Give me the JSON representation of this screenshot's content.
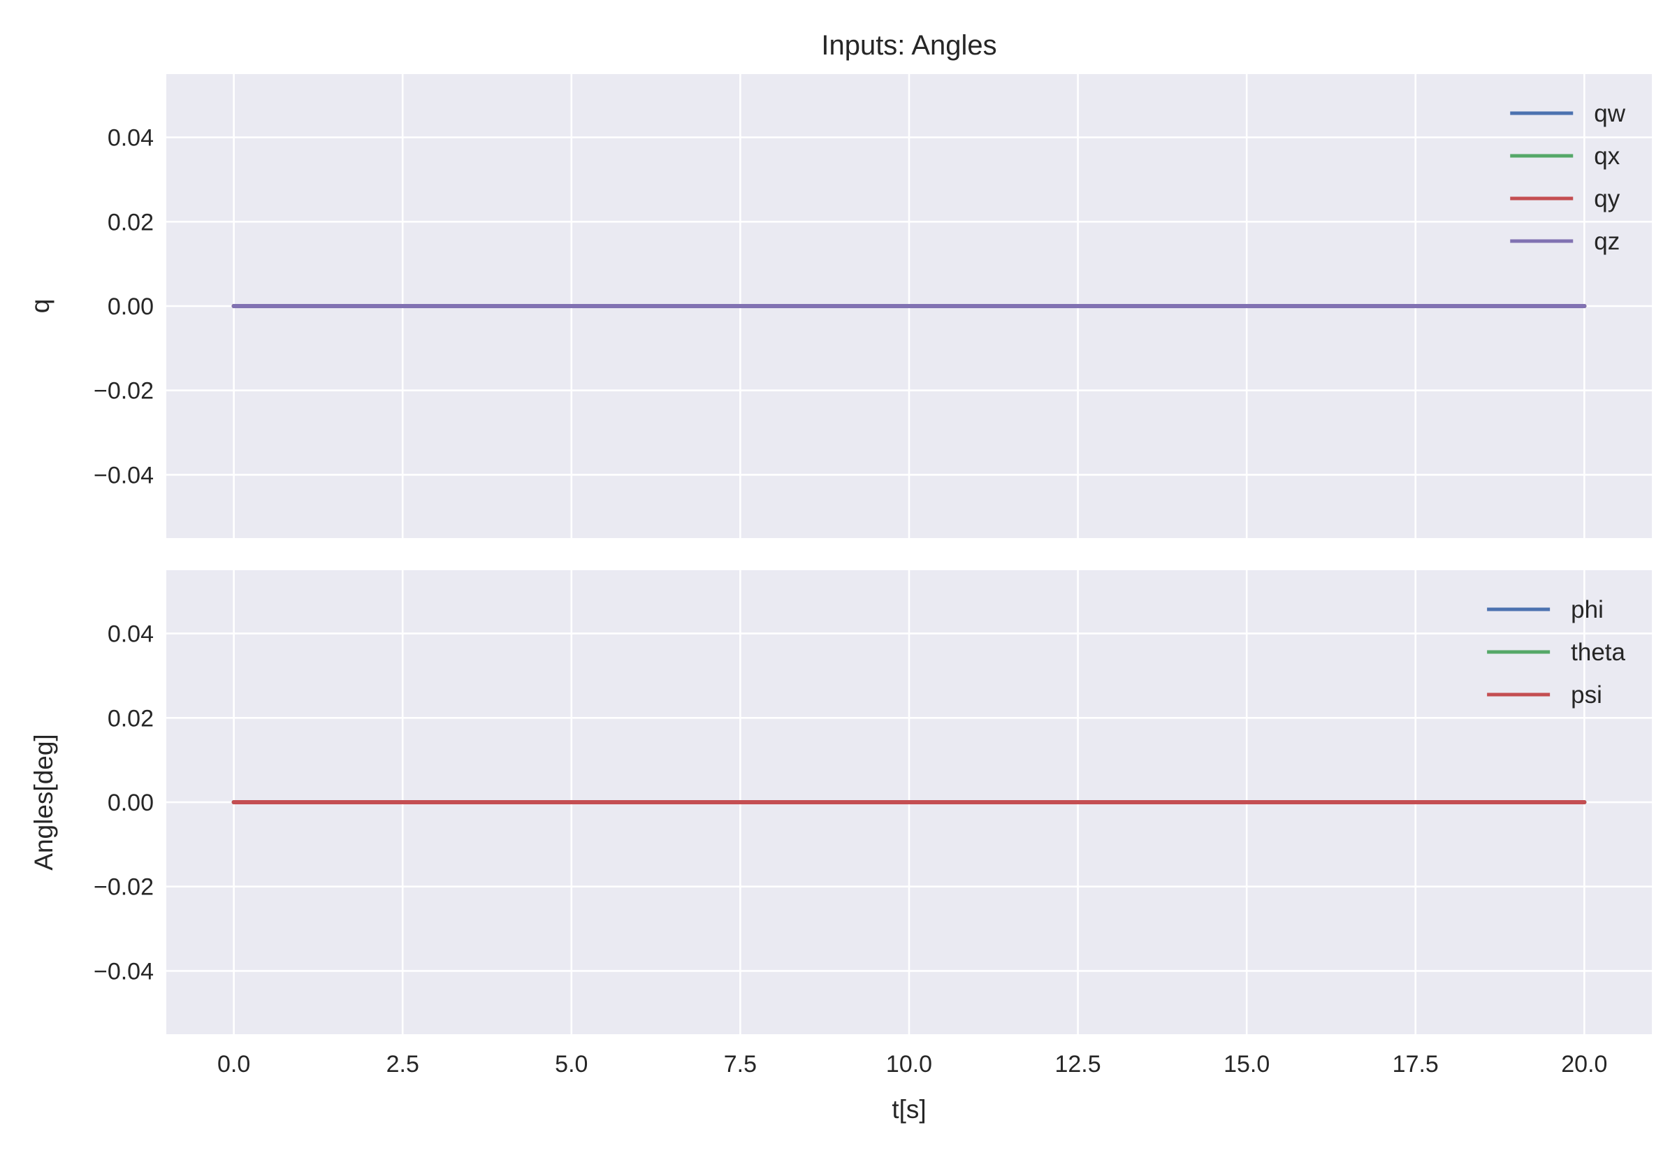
{
  "colors": {
    "background": "#ffffff",
    "plot_bg": "#eaeaf2",
    "grid": "#ffffff",
    "text": "#262626"
  },
  "chart_data": [
    {
      "type": "line",
      "title": "Inputs: Angles",
      "xlabel": "",
      "ylabel": "q",
      "xlim": [
        -1.0,
        21.0
      ],
      "ylim": [
        -0.055,
        0.055
      ],
      "xticks": [
        0.0,
        2.5,
        5.0,
        7.5,
        10.0,
        12.5,
        15.0,
        17.5,
        20.0
      ],
      "xtick_labels": [],
      "yticks": [
        0.04,
        0.02,
        0.0,
        -0.02,
        -0.04
      ],
      "ytick_labels": [
        "0.04",
        "0.02",
        "0.00",
        "−0.02",
        "−0.04"
      ],
      "grid": true,
      "legend_position": "top-right",
      "series": [
        {
          "name": "qw",
          "color": "#4c72b0",
          "x": [
            0,
            20
          ],
          "y": [
            0,
            0
          ]
        },
        {
          "name": "qx",
          "color": "#55a868",
          "x": [
            0,
            20
          ],
          "y": [
            0,
            0
          ]
        },
        {
          "name": "qy",
          "color": "#c44e52",
          "x": [
            0,
            20
          ],
          "y": [
            0,
            0
          ]
        },
        {
          "name": "qz",
          "color": "#8172b2",
          "x": [
            0,
            20
          ],
          "y": [
            0,
            0
          ]
        }
      ]
    },
    {
      "type": "line",
      "title": "",
      "xlabel": "t[s]",
      "ylabel": "Angles[deg]",
      "xlim": [
        -1.0,
        21.0
      ],
      "ylim": [
        -0.055,
        0.055
      ],
      "xticks": [
        0.0,
        2.5,
        5.0,
        7.5,
        10.0,
        12.5,
        15.0,
        17.5,
        20.0
      ],
      "xtick_labels": [
        "0.0",
        "2.5",
        "5.0",
        "7.5",
        "10.0",
        "12.5",
        "15.0",
        "17.5",
        "20.0"
      ],
      "yticks": [
        0.04,
        0.02,
        0.0,
        -0.02,
        -0.04
      ],
      "ytick_labels": [
        "0.04",
        "0.02",
        "0.00",
        "−0.02",
        "−0.04"
      ],
      "grid": true,
      "legend_position": "top-right",
      "series": [
        {
          "name": "phi",
          "color": "#4c72b0",
          "x": [
            0,
            20
          ],
          "y": [
            0,
            0
          ]
        },
        {
          "name": "theta",
          "color": "#55a868",
          "x": [
            0,
            20
          ],
          "y": [
            0,
            0
          ]
        },
        {
          "name": "psi",
          "color": "#c44e52",
          "x": [
            0,
            20
          ],
          "y": [
            0,
            0
          ]
        }
      ]
    }
  ]
}
